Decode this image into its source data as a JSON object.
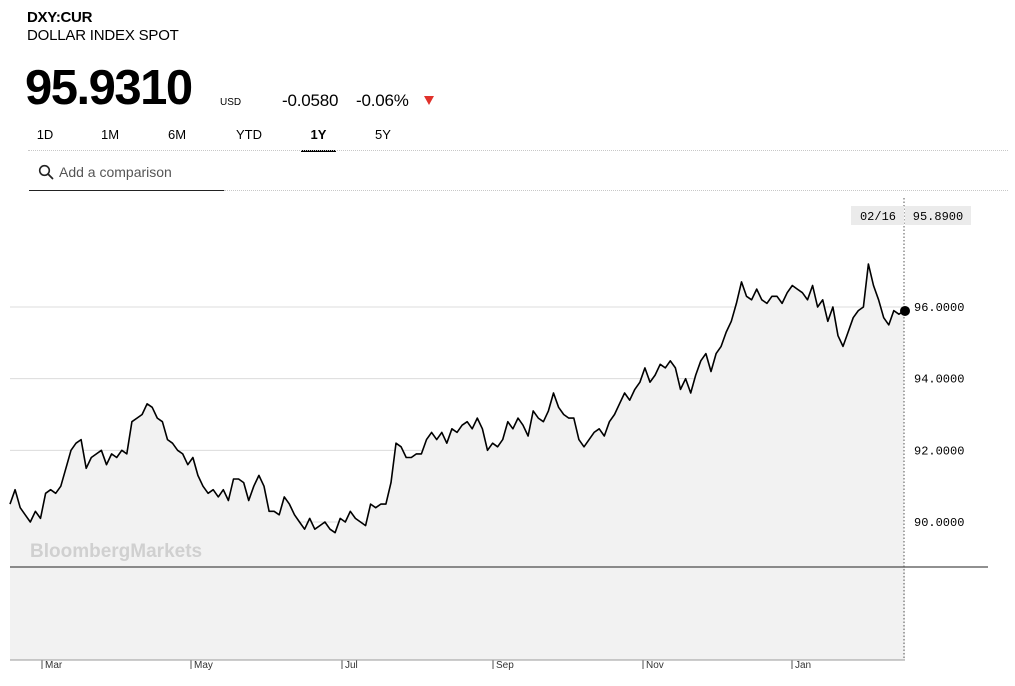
{
  "header": {
    "ticker": "DXY:CUR",
    "name": "DOLLAR INDEX SPOT",
    "price": "95.9310",
    "currency": "USD",
    "change": "-0.0580",
    "change_pct": "-0.06%",
    "direction_color": "#e0312b"
  },
  "tabs": [
    {
      "label": "1D",
      "active": false
    },
    {
      "label": "1M",
      "active": false
    },
    {
      "label": "6M",
      "active": false
    },
    {
      "label": "YTD",
      "active": false
    },
    {
      "label": "1Y",
      "active": true
    },
    {
      "label": "5Y",
      "active": false
    }
  ],
  "compare": {
    "placeholder": "Add a comparison",
    "icon": "search-icon"
  },
  "watermark": "BloombergMarkets",
  "chart_data": {
    "type": "area",
    "ylim": [
      88.7,
      98.3
    ],
    "yticks": [
      "90.0000",
      "92.0000",
      "94.0000",
      "96.0000"
    ],
    "ytick_values": [
      90,
      92,
      94,
      96
    ],
    "xticks": [
      "Mar",
      "May",
      "Jul",
      "Sep",
      "Nov",
      "Jan"
    ],
    "crosshair": {
      "date": "02/16",
      "value": "95.8900"
    },
    "grid": true,
    "line_color": "#000000",
    "fill_color": "#f2f2f2",
    "series": [
      {
        "values": [
          90.5,
          90.9,
          90.4,
          90.2,
          90.0,
          90.3,
          90.1,
          90.8,
          90.9,
          90.8,
          91.0,
          91.5,
          92.0,
          92.2,
          92.3,
          91.5,
          91.8,
          91.9,
          92.0,
          91.6,
          91.9,
          91.8,
          92.0,
          91.9,
          92.8,
          92.9,
          93.0,
          93.3,
          93.2,
          92.9,
          92.8,
          92.3,
          92.2,
          92.0,
          91.9,
          91.6,
          91.8,
          91.3,
          91.0,
          90.8,
          90.9,
          90.7,
          90.9,
          90.6,
          91.2,
          91.2,
          91.1,
          90.6,
          91.0,
          91.3,
          91.0,
          90.3,
          90.3,
          90.2,
          90.7,
          90.5,
          90.2,
          90.0,
          89.8,
          90.1,
          89.8,
          89.9,
          90.0,
          89.8,
          89.7,
          90.1,
          90.0,
          90.3,
          90.1,
          90.0,
          89.9,
          90.5,
          90.4,
          90.5,
          90.5,
          91.1,
          92.2,
          92.1,
          91.8,
          91.8,
          91.9,
          91.9,
          92.3,
          92.5,
          92.3,
          92.5,
          92.2,
          92.6,
          92.5,
          92.7,
          92.8,
          92.6,
          92.9,
          92.6,
          92.0,
          92.2,
          92.1,
          92.3,
          92.8,
          92.6,
          92.9,
          92.7,
          92.4,
          93.1,
          92.9,
          92.8,
          93.1,
          93.6,
          93.2,
          93.0,
          92.9,
          92.9,
          92.3,
          92.1,
          92.3,
          92.5,
          92.6,
          92.4,
          92.8,
          93.0,
          93.3,
          93.6,
          93.4,
          93.7,
          93.9,
          94.3,
          93.9,
          94.1,
          94.4,
          94.3,
          94.5,
          94.3,
          93.7,
          94.0,
          93.6,
          94.1,
          94.5,
          94.7,
          94.2,
          94.7,
          94.9,
          95.3,
          95.6,
          96.1,
          96.7,
          96.3,
          96.2,
          96.5,
          96.2,
          96.1,
          96.3,
          96.3,
          96.1,
          96.4,
          96.6,
          96.5,
          96.4,
          96.2,
          96.6,
          96.0,
          96.2,
          95.6,
          96.0,
          95.2,
          94.9,
          95.3,
          95.7,
          95.9,
          96.0,
          97.2,
          96.6,
          96.2,
          95.7,
          95.5,
          95.9,
          95.8,
          95.89
        ]
      }
    ]
  }
}
